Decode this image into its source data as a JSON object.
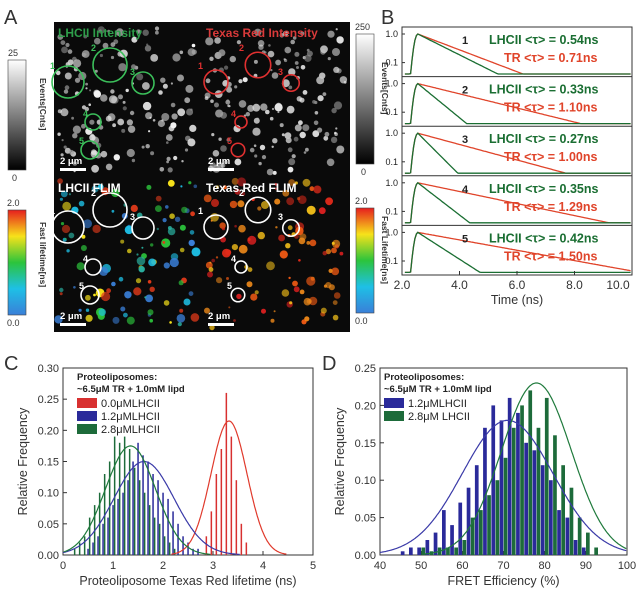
{
  "panel_labels": [
    "A",
    "B",
    "C",
    "D"
  ],
  "panel_a": {
    "tiles": [
      {
        "title": "LHCII Intensity",
        "title_color": "#2e9e4a",
        "scale_label": "2 μm",
        "roi_color": "#3bbf5a",
        "markers": [
          "1",
          "2",
          "3",
          "4",
          "5"
        ],
        "kind": "gray"
      },
      {
        "title": "Texas Red Intensity",
        "title_color": "#d93a3a",
        "scale_label": "2 μm",
        "roi_color": "#e03030",
        "markers": [
          "1",
          "2",
          "3",
          "4",
          "5"
        ],
        "kind": "gray"
      },
      {
        "title": "LHCII FLIM",
        "title_color": "#ffffff",
        "scale_label": "2 μm",
        "roi_color": "#ffffff",
        "markers": [
          "1",
          "2",
          "3",
          "4",
          "5"
        ],
        "kind": "flim_green"
      },
      {
        "title": "Texas Red FLIM",
        "title_color": "#ffffff",
        "scale_label": "2 μm",
        "roi_color": "#ffffff",
        "markers": [
          "1",
          "2",
          "3",
          "4",
          "5"
        ],
        "kind": "flim_red"
      }
    ],
    "left_gray_bar": {
      "max": "25",
      "min": "0",
      "label": "Events[Cnts]"
    },
    "right_gray_bar": {
      "max": "250",
      "min": "0",
      "label": "Events[Cnts]"
    },
    "left_color_bar": {
      "max": "2.0",
      "min": "0.0",
      "label": "Fast lifetime[ns]"
    },
    "right_color_bar": {
      "max": "2.0",
      "min": "0.0",
      "label": "Fast Lifetime[ns]"
    }
  },
  "chart_data": [
    {
      "type": "line",
      "panel": "B",
      "xlabel": "Time (ns)",
      "xlim": [
        2.0,
        10.0
      ],
      "xticks": [
        "2.0",
        "4.0",
        "6.0",
        "8.0",
        "10.0"
      ],
      "yticks": [
        "1.0",
        "0.1"
      ],
      "y_scale": "log",
      "series_colors": {
        "LHCII": "#1a6e32",
        "TR": "#e0442a"
      },
      "subplots": [
        {
          "id": "1",
          "lhcii_label": "LHCII <τ> = 0.54ns",
          "tr_label": "TR <τ> = 0.71ns",
          "lhcii_tau": 0.54,
          "tr_tau": 0.71
        },
        {
          "id": "2",
          "lhcii_label": "LHCII <τ> = 0.33ns",
          "tr_label": "TR <τ> = 1.10ns",
          "lhcii_tau": 0.33,
          "tr_tau": 1.1
        },
        {
          "id": "3",
          "lhcii_label": "LHCII <τ> = 0.27ns",
          "tr_label": "TR <τ> = 1.00ns",
          "lhcii_tau": 0.27,
          "tr_tau": 1.0
        },
        {
          "id": "4",
          "lhcii_label": "LHCII <τ> = 0.35ns",
          "tr_label": "TR <τ> = 1.29ns",
          "lhcii_tau": 0.35,
          "tr_tau": 1.29
        },
        {
          "id": "5",
          "lhcii_label": "LHCII <τ> = 0.42ns",
          "tr_label": "TR <τ> = 1.50ns",
          "lhcii_tau": 0.42,
          "tr_tau": 1.5
        }
      ]
    },
    {
      "type": "bar",
      "panel": "C",
      "xlabel": "Proteoliposome Texas Red lifetime (ns)",
      "ylabel": "Relative Frequency",
      "xlim": [
        0,
        5
      ],
      "ylim": [
        0,
        0.3
      ],
      "xticks": [
        "0",
        "1",
        "2",
        "3",
        "4",
        "5"
      ],
      "yticks": [
        "0.00",
        "0.05",
        "0.10",
        "0.15",
        "0.20",
        "0.25",
        "0.30"
      ],
      "legend_title": "Proteoliposomes:",
      "legend_subtitle": "~6.5μM TR + 1.0mM lipd",
      "legend_position": "top-left",
      "bin_width": 0.1,
      "series": [
        {
          "name": "0.0μMLHCII",
          "color": "#d83030",
          "line_color": "#e03a2c",
          "x": [
            2.9,
            3.0,
            3.1,
            3.2,
            3.3,
            3.4,
            3.5,
            3.6,
            3.7
          ],
          "values": [
            0.03,
            0.07,
            0.13,
            0.17,
            0.26,
            0.19,
            0.12,
            0.05,
            0.02
          ],
          "fit": {
            "mu": 3.32,
            "sigma": 0.36,
            "amp": 0.215
          }
        },
        {
          "name": "1.2μMLHCII",
          "color": "#2a2a9a",
          "line_color": "#3a3aa8",
          "x": [
            0.5,
            0.6,
            0.7,
            0.8,
            0.9,
            1.0,
            1.1,
            1.2,
            1.3,
            1.4,
            1.5,
            1.6,
            1.7,
            1.8,
            1.9,
            2.0,
            2.1,
            2.2,
            2.3,
            2.4,
            2.5,
            2.6,
            2.7
          ],
          "values": [
            0.01,
            0.02,
            0.03,
            0.05,
            0.06,
            0.08,
            0.09,
            0.1,
            0.12,
            0.15,
            0.18,
            0.16,
            0.15,
            0.13,
            0.12,
            0.1,
            0.09,
            0.07,
            0.05,
            0.03,
            0.02,
            0.01,
            0.01
          ],
          "fit": {
            "mu": 1.62,
            "sigma": 0.6,
            "amp": 0.15
          }
        },
        {
          "name": "2.8μMLHCII",
          "color": "#1d6b3a",
          "line_color": "#1f7a3c",
          "x": [
            0.2,
            0.3,
            0.4,
            0.5,
            0.6,
            0.7,
            0.8,
            0.9,
            1.0,
            1.1,
            1.2,
            1.3,
            1.4,
            1.5,
            1.6,
            1.7,
            1.8,
            1.9,
            2.0,
            2.1,
            2.2
          ],
          "values": [
            0.01,
            0.02,
            0.03,
            0.06,
            0.08,
            0.1,
            0.13,
            0.15,
            0.19,
            0.18,
            0.19,
            0.17,
            0.14,
            0.12,
            0.1,
            0.08,
            0.06,
            0.05,
            0.03,
            0.02,
            0.01
          ],
          "fit": {
            "mu": 1.35,
            "sigma": 0.5,
            "amp": 0.175
          }
        }
      ]
    },
    {
      "type": "bar",
      "panel": "D",
      "xlabel": "FRET Efficiency (%)",
      "ylabel": "Relative Frequency",
      "xlim": [
        40,
        100
      ],
      "ylim": [
        0,
        0.25
      ],
      "xticks": [
        "40",
        "50",
        "60",
        "70",
        "80",
        "90",
        "100"
      ],
      "yticks": [
        "0.00",
        "0.05",
        "0.10",
        "0.15",
        "0.20",
        "0.25"
      ],
      "legend_title": "Proteoliposomes:",
      "legend_subtitle": "~6.5μM TR + 1.0mM lipd",
      "legend_position": "top-left",
      "bin_width": 2,
      "series": [
        {
          "name": "1.2μMLHCII",
          "color": "#2a2a9a",
          "line_color": "#3a3aa8",
          "x": [
            46,
            48,
            50,
            52,
            54,
            56,
            58,
            60,
            62,
            64,
            66,
            68,
            70,
            72,
            74,
            76,
            78,
            80,
            82,
            84,
            86,
            88,
            90
          ],
          "values": [
            0.005,
            0.01,
            0.01,
            0.02,
            0.03,
            0.06,
            0.04,
            0.07,
            0.09,
            0.12,
            0.17,
            0.2,
            0.18,
            0.21,
            0.19,
            0.15,
            0.14,
            0.12,
            0.1,
            0.06,
            0.05,
            0.02,
            0.01
          ],
          "fit": {
            "mu": 71.0,
            "sigma": 11.0,
            "amp": 0.18
          }
        },
        {
          "name": "2.8μM LHCII",
          "color": "#1d6b3a",
          "line_color": "#1f7a3c",
          "x": [
            50,
            52,
            54,
            56,
            58,
            60,
            62,
            64,
            66,
            68,
            70,
            72,
            74,
            76,
            78,
            80,
            82,
            84,
            86,
            88,
            90,
            92
          ],
          "values": [
            0.01,
            0.005,
            0.01,
            0.01,
            0.01,
            0.02,
            0.05,
            0.06,
            0.08,
            0.1,
            0.13,
            0.17,
            0.2,
            0.22,
            0.17,
            0.21,
            0.16,
            0.12,
            0.09,
            0.05,
            0.03,
            0.01
          ],
          "fit": {
            "mu": 78.0,
            "sigma": 8.5,
            "amp": 0.23
          }
        }
      ]
    }
  ]
}
